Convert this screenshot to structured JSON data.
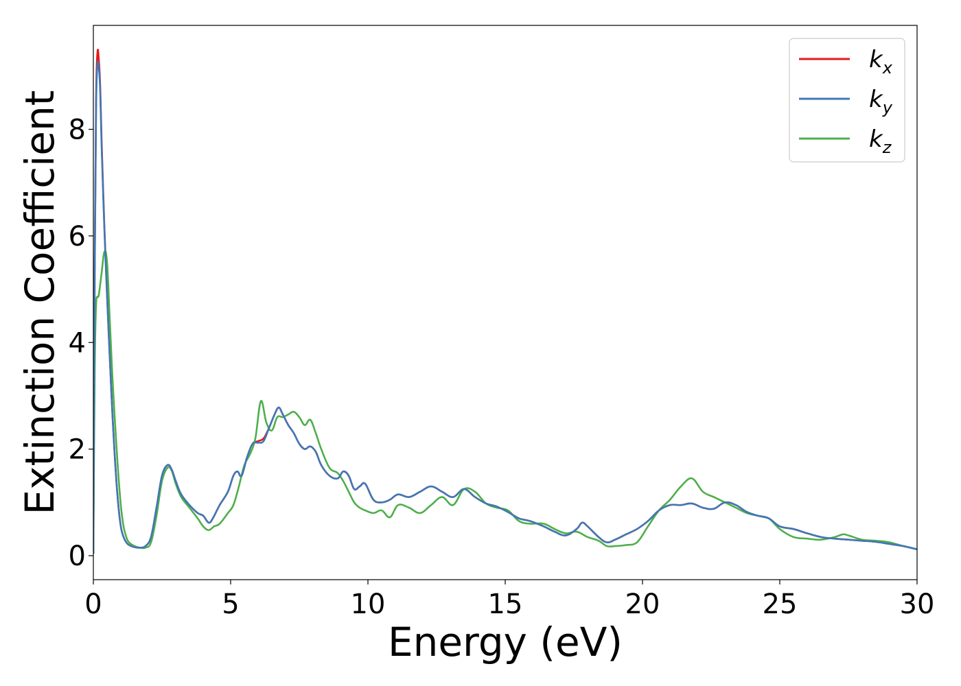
{
  "chart_data": {
    "type": "line",
    "xlabel": "Energy (eV)",
    "ylabel": "Extinction Coefficient",
    "xlim": [
      0,
      30
    ],
    "ylim": [
      -0.45,
      9.95
    ],
    "xticks": [
      0,
      5,
      10,
      15,
      20,
      25,
      30
    ],
    "yticks": [
      0,
      2,
      4,
      6,
      8
    ],
    "grid": false,
    "legend_position": "top-right",
    "series": [
      {
        "name": "k_x",
        "legend_base": "k",
        "legend_sub": "x",
        "color": "#e41a1c",
        "x": [
          0,
          0.05,
          0.1,
          0.15,
          0.2,
          0.25,
          0.3,
          0.4,
          0.5,
          0.6,
          0.7,
          0.8,
          0.9,
          1.0,
          1.1,
          1.2,
          1.3,
          1.5,
          1.7,
          1.9,
          2.1,
          2.3,
          2.5,
          2.7,
          2.85,
          3.0,
          3.2,
          3.5,
          3.8,
          4.0,
          4.2,
          4.35,
          4.6,
          4.9,
          5.1,
          5.25,
          5.4,
          5.6,
          5.8,
          6.0,
          6.2,
          6.4,
          6.6,
          6.75,
          6.9,
          7.1,
          7.3,
          7.5,
          7.7,
          7.9,
          8.1,
          8.3,
          8.6,
          8.9,
          9.1,
          9.3,
          9.5,
          9.7,
          9.9,
          10.2,
          10.5,
          10.8,
          11.1,
          11.5,
          11.9,
          12.3,
          12.7,
          13.1,
          13.5,
          13.9,
          14.3,
          14.7,
          15.1,
          15.5,
          15.9,
          16.4,
          16.8,
          17.2,
          17.6,
          17.8,
          18.0,
          18.4,
          18.7,
          19.0,
          19.4,
          19.8,
          20.2,
          20.6,
          21.0,
          21.4,
          21.8,
          22.2,
          22.6,
          23.0,
          23.4,
          23.8,
          24.2,
          24.6,
          25.0,
          25.5,
          26.0,
          26.5,
          27.0,
          27.5,
          28.0,
          28.5,
          29.0,
          29.5,
          30.0
        ],
        "y": [
          0.05,
          5.5,
          8.6,
          9.45,
          9.3,
          8.8,
          7.8,
          6.2,
          4.9,
          3.7,
          2.6,
          1.7,
          1.0,
          0.55,
          0.35,
          0.25,
          0.2,
          0.16,
          0.15,
          0.18,
          0.35,
          0.9,
          1.5,
          1.7,
          1.62,
          1.4,
          1.15,
          0.95,
          0.8,
          0.75,
          0.62,
          0.7,
          0.95,
          1.2,
          1.5,
          1.58,
          1.5,
          1.85,
          2.1,
          2.15,
          2.2,
          2.4,
          2.65,
          2.78,
          2.65,
          2.45,
          2.3,
          2.1,
          2.0,
          2.05,
          1.95,
          1.7,
          1.5,
          1.45,
          1.58,
          1.5,
          1.25,
          1.3,
          1.35,
          1.05,
          1.0,
          1.05,
          1.15,
          1.1,
          1.2,
          1.3,
          1.2,
          1.1,
          1.25,
          1.1,
          0.98,
          0.92,
          0.82,
          0.7,
          0.65,
          0.55,
          0.45,
          0.38,
          0.5,
          0.62,
          0.55,
          0.35,
          0.25,
          0.3,
          0.4,
          0.5,
          0.65,
          0.85,
          0.95,
          0.95,
          0.98,
          0.9,
          0.88,
          1.0,
          0.95,
          0.82,
          0.75,
          0.7,
          0.55,
          0.5,
          0.42,
          0.35,
          0.32,
          0.3,
          0.28,
          0.26,
          0.22,
          0.18,
          0.12
        ]
      },
      {
        "name": "k_y",
        "legend_base": "k",
        "legend_sub": "y",
        "color": "#3f78b5",
        "x": [
          0,
          0.05,
          0.1,
          0.15,
          0.2,
          0.25,
          0.3,
          0.4,
          0.5,
          0.6,
          0.7,
          0.8,
          0.9,
          1.0,
          1.1,
          1.2,
          1.3,
          1.5,
          1.7,
          1.9,
          2.1,
          2.3,
          2.5,
          2.7,
          2.85,
          3.0,
          3.2,
          3.5,
          3.8,
          4.0,
          4.2,
          4.35,
          4.6,
          4.9,
          5.1,
          5.25,
          5.4,
          5.6,
          5.8,
          6.0,
          6.2,
          6.4,
          6.6,
          6.75,
          6.9,
          7.1,
          7.3,
          7.5,
          7.7,
          7.9,
          8.1,
          8.3,
          8.6,
          8.9,
          9.1,
          9.3,
          9.5,
          9.7,
          9.9,
          10.2,
          10.5,
          10.8,
          11.1,
          11.5,
          11.9,
          12.3,
          12.7,
          13.1,
          13.5,
          13.9,
          14.3,
          14.7,
          15.1,
          15.5,
          15.9,
          16.4,
          16.8,
          17.2,
          17.6,
          17.8,
          18.0,
          18.4,
          18.7,
          19.0,
          19.4,
          19.8,
          20.2,
          20.6,
          21.0,
          21.4,
          21.8,
          22.2,
          22.6,
          23.0,
          23.4,
          23.8,
          24.2,
          24.6,
          25.0,
          25.5,
          26.0,
          26.5,
          27.0,
          27.5,
          28.0,
          28.5,
          29.0,
          29.5,
          30.0
        ],
        "y": [
          0.05,
          5.3,
          8.4,
          9.2,
          9.15,
          8.7,
          7.7,
          6.15,
          4.85,
          3.7,
          2.6,
          1.7,
          1.0,
          0.55,
          0.35,
          0.25,
          0.2,
          0.16,
          0.15,
          0.18,
          0.35,
          0.9,
          1.5,
          1.7,
          1.62,
          1.4,
          1.15,
          0.95,
          0.8,
          0.75,
          0.62,
          0.7,
          0.95,
          1.2,
          1.5,
          1.58,
          1.5,
          1.85,
          2.1,
          2.12,
          2.15,
          2.4,
          2.65,
          2.78,
          2.65,
          2.45,
          2.3,
          2.1,
          2.0,
          2.05,
          1.95,
          1.7,
          1.5,
          1.45,
          1.58,
          1.5,
          1.25,
          1.3,
          1.35,
          1.05,
          1.0,
          1.05,
          1.15,
          1.1,
          1.2,
          1.3,
          1.2,
          1.1,
          1.25,
          1.1,
          0.98,
          0.92,
          0.82,
          0.7,
          0.65,
          0.55,
          0.45,
          0.38,
          0.5,
          0.62,
          0.55,
          0.35,
          0.25,
          0.3,
          0.4,
          0.5,
          0.65,
          0.85,
          0.95,
          0.95,
          0.98,
          0.9,
          0.88,
          1.0,
          0.95,
          0.82,
          0.75,
          0.7,
          0.55,
          0.5,
          0.42,
          0.35,
          0.32,
          0.3,
          0.28,
          0.26,
          0.22,
          0.18,
          0.12
        ]
      },
      {
        "name": "k_z",
        "legend_base": "k",
        "legend_sub": "z",
        "color": "#4daf4a",
        "x": [
          0,
          0.05,
          0.1,
          0.15,
          0.2,
          0.3,
          0.4,
          0.5,
          0.6,
          0.7,
          0.8,
          0.9,
          1.0,
          1.1,
          1.2,
          1.3,
          1.5,
          1.7,
          1.9,
          2.1,
          2.3,
          2.5,
          2.7,
          2.85,
          3.0,
          3.2,
          3.5,
          3.8,
          4.0,
          4.2,
          4.4,
          4.6,
          4.9,
          5.1,
          5.3,
          5.5,
          5.7,
          5.9,
          6.1,
          6.3,
          6.5,
          6.7,
          6.9,
          7.1,
          7.3,
          7.5,
          7.7,
          7.9,
          8.1,
          8.3,
          8.6,
          8.9,
          9.1,
          9.3,
          9.5,
          9.7,
          9.9,
          10.2,
          10.5,
          10.8,
          11.1,
          11.5,
          11.9,
          12.3,
          12.7,
          13.1,
          13.5,
          13.9,
          14.3,
          14.7,
          15.1,
          15.5,
          15.9,
          16.4,
          16.8,
          17.2,
          17.6,
          18.0,
          18.4,
          18.7,
          19.0,
          19.4,
          19.8,
          20.2,
          20.6,
          21.0,
          21.4,
          21.8,
          22.2,
          22.6,
          23.0,
          23.4,
          23.8,
          24.2,
          24.6,
          25.0,
          25.5,
          26.0,
          26.5,
          27.0,
          27.3,
          27.5,
          28.0,
          28.5,
          29.0,
          29.5,
          30.0
        ],
        "y": [
          0.05,
          3.5,
          4.7,
          4.85,
          4.9,
          5.3,
          5.7,
          5.5,
          4.4,
          3.3,
          2.4,
          1.6,
          0.95,
          0.55,
          0.35,
          0.25,
          0.18,
          0.15,
          0.15,
          0.25,
          0.75,
          1.4,
          1.65,
          1.6,
          1.35,
          1.1,
          0.9,
          0.7,
          0.55,
          0.48,
          0.55,
          0.6,
          0.8,
          0.95,
          1.3,
          1.7,
          1.9,
          2.2,
          2.9,
          2.5,
          2.35,
          2.6,
          2.6,
          2.65,
          2.7,
          2.6,
          2.45,
          2.55,
          2.3,
          2.0,
          1.65,
          1.55,
          1.4,
          1.2,
          1.0,
          0.9,
          0.85,
          0.8,
          0.85,
          0.72,
          0.95,
          0.9,
          0.8,
          0.95,
          1.1,
          0.95,
          1.25,
          1.2,
          0.98,
          0.9,
          0.85,
          0.65,
          0.6,
          0.6,
          0.5,
          0.42,
          0.45,
          0.35,
          0.28,
          0.18,
          0.18,
          0.2,
          0.25,
          0.55,
          0.85,
          1.05,
          1.3,
          1.45,
          1.2,
          1.1,
          1.0,
          0.9,
          0.8,
          0.75,
          0.7,
          0.5,
          0.35,
          0.32,
          0.3,
          0.35,
          0.4,
          0.38,
          0.3,
          0.28,
          0.25,
          0.18,
          0.12
        ]
      }
    ]
  }
}
